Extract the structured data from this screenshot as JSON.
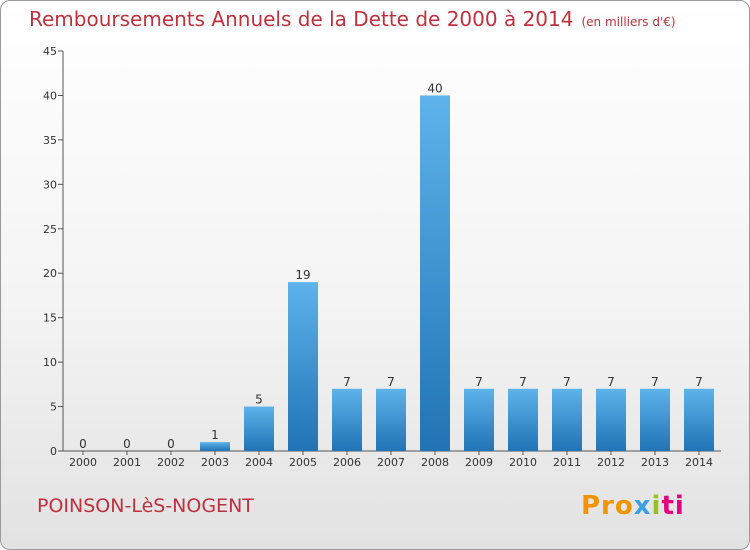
{
  "chart_data": {
    "type": "bar",
    "title": "Remboursements Annuels de la Dette de 2000 à 2014",
    "unit_note": "(en milliers d'€)",
    "categories": [
      "2000",
      "2001",
      "2002",
      "2003",
      "2004",
      "2005",
      "2006",
      "2007",
      "2008",
      "2009",
      "2010",
      "2011",
      "2012",
      "2013",
      "2014"
    ],
    "values": [
      0,
      0,
      0,
      1,
      5,
      19,
      7,
      7,
      40,
      7,
      7,
      7,
      7,
      7,
      7
    ],
    "ylim": [
      0,
      45
    ],
    "yticks": [
      0,
      5,
      10,
      15,
      20,
      25,
      30,
      35,
      40,
      45
    ],
    "xlabel": "",
    "ylabel": "",
    "grid": false,
    "bar_color": "#3d94d6"
  },
  "footer": {
    "town": "POINSON-LèS-NOGENT",
    "brand": [
      "Pro",
      "x",
      "i",
      "ti"
    ]
  }
}
